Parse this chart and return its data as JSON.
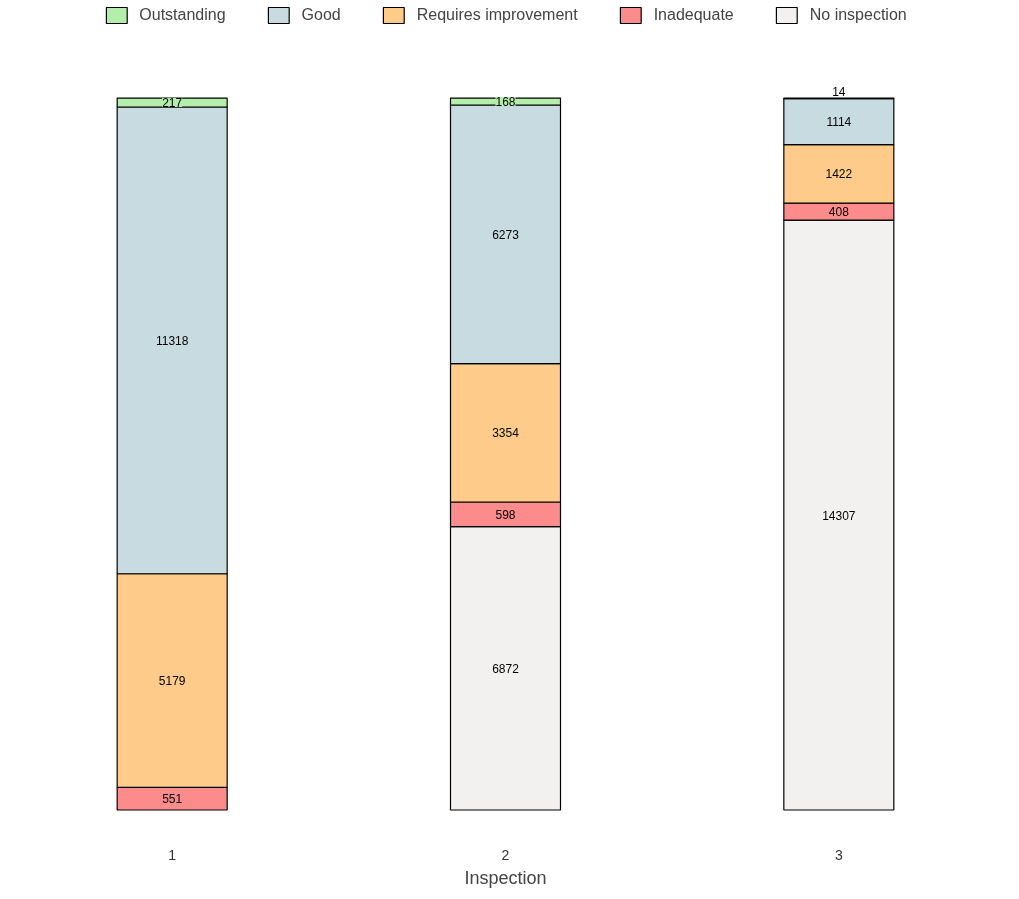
{
  "chart_data": {
    "type": "bar",
    "stacked": true,
    "xlabel": "Inspection",
    "categories": [
      "1",
      "2",
      "3"
    ],
    "series": [
      {
        "name": "No inspection",
        "color": "#f3f0f0",
        "values": [
          null,
          6872,
          14307
        ]
      },
      {
        "name": "Inadequate",
        "color": "#fc8c8c",
        "values": [
          551,
          598,
          408
        ]
      },
      {
        "name": "Requires improvement",
        "color": "#fecb8a",
        "values": [
          5179,
          3354,
          1422
        ]
      },
      {
        "name": "Good",
        "color": "#c8dbe1",
        "values": [
          11318,
          6273,
          1114
        ]
      },
      {
        "name": "Outstanding",
        "color": "#b3efab",
        "values": [
          217,
          168,
          14
        ]
      }
    ],
    "data_labels": true,
    "legend": "top",
    "grid": false,
    "tick_labels": "x"
  }
}
